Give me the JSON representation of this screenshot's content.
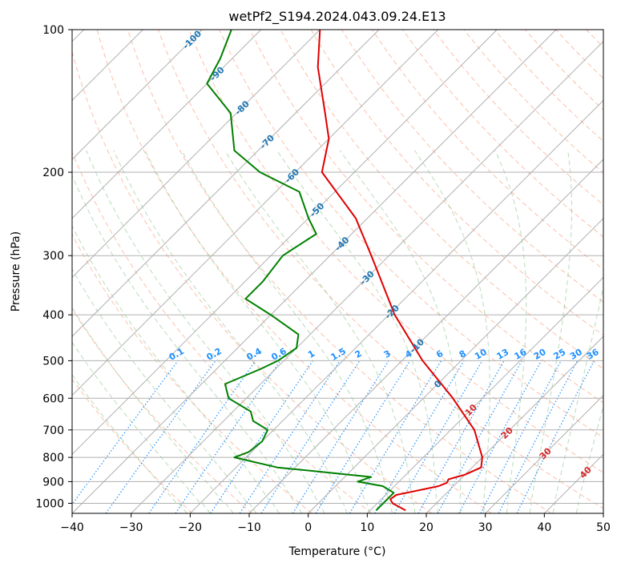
{
  "chart_data": {
    "type": "line",
    "chart_kind": "Skew-T log-P diagram",
    "title": "wetPf2_S194.2024.043.09.24.E13",
    "xlabel": "Temperature (°C)",
    "ylabel": "Pressure (hPa)",
    "xlim": [
      -40,
      50
    ],
    "ylim": [
      1050,
      100
    ],
    "y_scale": "log",
    "grid": true,
    "x_ticks": [
      -40,
      -30,
      -20,
      -10,
      0,
      10,
      20,
      30,
      40,
      50
    ],
    "y_ticks": [
      100,
      200,
      300,
      400,
      500,
      600,
      700,
      800,
      900,
      1000
    ],
    "skewed_isotherm_labels": [
      "-100",
      "-90",
      "-80",
      "-70",
      "-60",
      "-50",
      "-40",
      "-30",
      "-20",
      "-10",
      "0",
      "10",
      "20",
      "30",
      "40"
    ],
    "mixing_ratio_labels": [
      "0.1",
      "0.2",
      "0.4",
      "0.6",
      "1",
      "1.5",
      "2",
      "3",
      "4",
      "6",
      "8",
      "10",
      "13",
      "16",
      "20",
      "25",
      "30",
      "36"
    ],
    "series": [
      {
        "name": "temperature",
        "color": "#e00000",
        "points": [
          [
            1035,
            16.0
          ],
          [
            1000,
            12.6
          ],
          [
            980,
            11.5
          ],
          [
            960,
            11.8
          ],
          [
            920,
            17.5
          ],
          [
            905,
            18.3
          ],
          [
            890,
            18.0
          ],
          [
            870,
            20.0
          ],
          [
            840,
            21.5
          ],
          [
            800,
            20.0
          ],
          [
            700,
            14.0
          ],
          [
            600,
            5.0
          ],
          [
            500,
            -6.5
          ],
          [
            400,
            -19.0
          ],
          [
            300,
            -33.0
          ],
          [
            250,
            -42.0
          ],
          [
            200,
            -55.5
          ],
          [
            170,
            -60.0
          ],
          [
            150,
            -65.0
          ],
          [
            120,
            -74.0
          ],
          [
            100,
            -80.0
          ]
        ]
      },
      {
        "name": "dewpoint",
        "color": "#008000",
        "points": [
          [
            1035,
            11.0
          ],
          [
            1000,
            11.0
          ],
          [
            950,
            11.0
          ],
          [
            920,
            8.0
          ],
          [
            900,
            3.0
          ],
          [
            880,
            4.5
          ],
          [
            860,
            -4.0
          ],
          [
            840,
            -13.0
          ],
          [
            800,
            -22.0
          ],
          [
            780,
            -20.5
          ],
          [
            740,
            -20.0
          ],
          [
            700,
            -21.0
          ],
          [
            670,
            -25.0
          ],
          [
            640,
            -27.0
          ],
          [
            600,
            -33.0
          ],
          [
            560,
            -36.0
          ],
          [
            520,
            -32.5
          ],
          [
            500,
            -31.0
          ],
          [
            470,
            -30.0
          ],
          [
            440,
            -32.0
          ],
          [
            400,
            -40.0
          ],
          [
            370,
            -47.0
          ],
          [
            340,
            -47.0
          ],
          [
            300,
            -48.0
          ],
          [
            270,
            -46.0
          ],
          [
            250,
            -50.0
          ],
          [
            220,
            -56.0
          ],
          [
            200,
            -66.0
          ],
          [
            180,
            -74.0
          ],
          [
            150,
            -81.0
          ],
          [
            130,
            -90.0
          ],
          [
            115,
            -92.0
          ],
          [
            100,
            -95.0
          ]
        ]
      }
    ]
  },
  "colors": {
    "temperature": "#e00000",
    "dewpoint": "#008000",
    "dry_adiabat": "#fa8a64",
    "moist_adiabat": "#7fbf7f",
    "mixing_ratio": "#1e90ff",
    "isotherm": "#808080",
    "grid": "#b0b0b0"
  }
}
